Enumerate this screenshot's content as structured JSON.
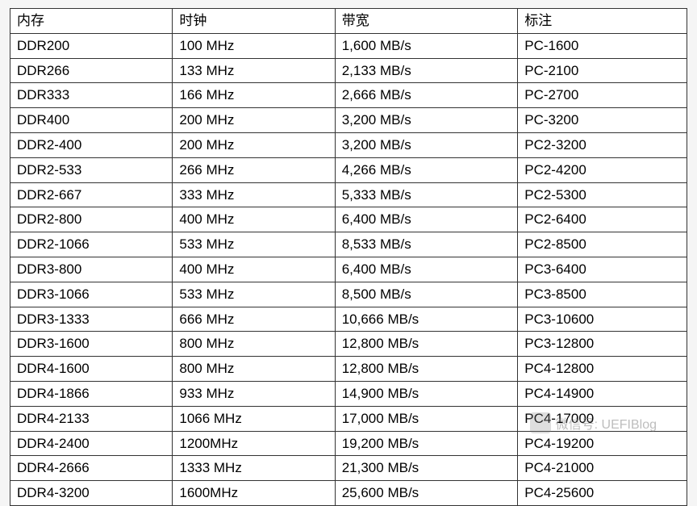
{
  "table": {
    "type": "table",
    "border_color": "#333333",
    "background_color": "#ffffff",
    "header_fontsize": 17,
    "cell_fontsize": 17,
    "text_color": "#000000",
    "columns": [
      {
        "label": "内存",
        "width": "24%",
        "align": "left"
      },
      {
        "label": "时钟",
        "width": "24%",
        "align": "left"
      },
      {
        "label": "带宽",
        "width": "27%",
        "align": "left"
      },
      {
        "label": "标注",
        "width": "25%",
        "align": "left"
      }
    ],
    "rows": [
      [
        "DDR200",
        "100 MHz",
        "1,600 MB/s",
        "PC-1600"
      ],
      [
        "DDR266",
        "133 MHz",
        "2,133 MB/s",
        "PC-2100"
      ],
      [
        "DDR333",
        "166 MHz",
        "2,666 MB/s",
        "PC-2700"
      ],
      [
        "DDR400",
        "200 MHz",
        "3,200 MB/s",
        "PC-3200"
      ],
      [
        "DDR2-400",
        "200 MHz",
        "3,200 MB/s",
        "PC2-3200"
      ],
      [
        "DDR2-533",
        "266 MHz",
        "4,266 MB/s",
        "PC2-4200"
      ],
      [
        "DDR2-667",
        "333 MHz",
        "5,333 MB/s",
        "PC2-5300"
      ],
      [
        "DDR2-800",
        "400 MHz",
        "6,400 MB/s",
        "PC2-6400"
      ],
      [
        "DDR2-1066",
        "533 MHz",
        "8,533 MB/s",
        "PC2-8500"
      ],
      [
        "DDR3-800",
        "400 MHz",
        "6,400 MB/s",
        "PC3-6400"
      ],
      [
        "DDR3-1066",
        "533 MHz",
        "8,500 MB/s",
        "PC3-8500"
      ],
      [
        "DDR3-1333",
        "666 MHz",
        "10,666 MB/s",
        "PC3-10600"
      ],
      [
        "DDR3-1600",
        "800 MHz",
        "12,800 MB/s",
        "PC3-12800"
      ],
      [
        "DDR4-1600",
        "800 MHz",
        "12,800 MB/s",
        "PC4-12800"
      ],
      [
        "DDR4-1866",
        "933 MHz",
        "14,900 MB/s",
        "PC4-14900"
      ],
      [
        "DDR4-2133",
        "1066 MHz",
        "17,000 MB/s",
        "PC4-17000"
      ],
      [
        "DDR4-2400",
        "1200MHz",
        "19,200 MB/s",
        "PC4-19200"
      ],
      [
        "DDR4-2666",
        "1333 MHz",
        "21,300 MB/s",
        "PC4-21000"
      ],
      [
        "DDR4-3200",
        "1600MHz",
        "25,600 MB/s",
        "PC4-25600"
      ]
    ]
  },
  "watermark": {
    "label_prefix": "微信号:",
    "label_value": "UEFIBlog",
    "text_color": "#888888",
    "opacity": 0.55
  }
}
